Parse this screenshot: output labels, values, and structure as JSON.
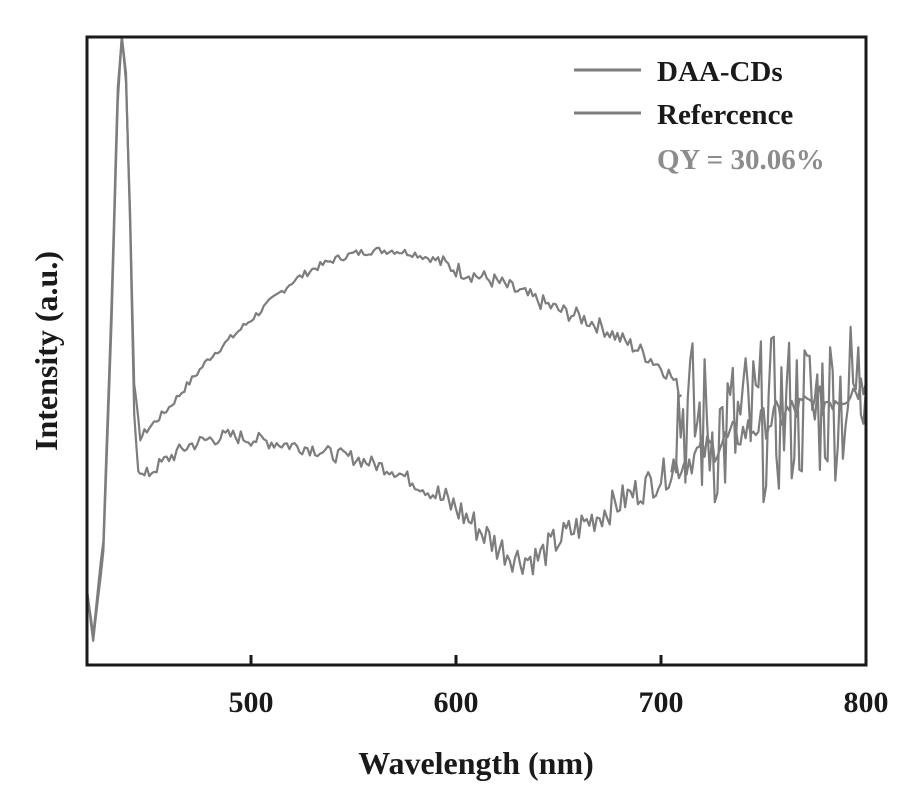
{
  "chart_data": {
    "type": "line",
    "title": "",
    "xlabel": "Wavelength (nm)",
    "ylabel": "Intensity (a.u.)",
    "xlim": [
      420,
      800
    ],
    "ylim": [
      0,
      100
    ],
    "xticks": [
      500,
      600,
      700,
      800
    ],
    "xtick_labels": [
      "500",
      "600",
      "700",
      "800"
    ],
    "grid": false,
    "legend_position": "top-right",
    "colors": {
      "line": "#7d7d7d",
      "axis": "#1a1a1a",
      "annotation": "#8c8c8c"
    },
    "series": [
      {
        "name": "DAA-CDs",
        "noise": 0.6,
        "points": [
          [
            420,
            12
          ],
          [
            423,
            4
          ],
          [
            428,
            18
          ],
          [
            432,
            55
          ],
          [
            435,
            90
          ],
          [
            437,
            100
          ],
          [
            439,
            93
          ],
          [
            441,
            72
          ],
          [
            443,
            45
          ],
          [
            446,
            36
          ],
          [
            448,
            37
          ],
          [
            460,
            41
          ],
          [
            470,
            45
          ],
          [
            480,
            49
          ],
          [
            490,
            52
          ],
          [
            500,
            55
          ],
          [
            510,
            58
          ],
          [
            520,
            61
          ],
          [
            530,
            63
          ],
          [
            540,
            64.5
          ],
          [
            550,
            65.5
          ],
          [
            560,
            66
          ],
          [
            570,
            66
          ],
          [
            580,
            65.5
          ],
          [
            590,
            64.5
          ],
          [
            600,
            63
          ],
          [
            610,
            62
          ],
          [
            620,
            61
          ],
          [
            630,
            59.5
          ],
          [
            640,
            58
          ],
          [
            650,
            56.5
          ],
          [
            660,
            55.5
          ],
          [
            670,
            54
          ],
          [
            680,
            52
          ],
          [
            690,
            50
          ],
          [
            700,
            47.5
          ],
          [
            705,
            46
          ],
          [
            710,
            43
          ]
        ]
      },
      {
        "name": "Refercence",
        "noise": 1.2,
        "points": [
          [
            420,
            12
          ],
          [
            423,
            5
          ],
          [
            428,
            20
          ],
          [
            432,
            58
          ],
          [
            435,
            92
          ],
          [
            437,
            100
          ],
          [
            439,
            94
          ],
          [
            441,
            70
          ],
          [
            443,
            40
          ],
          [
            445,
            31
          ],
          [
            448,
            30
          ],
          [
            460,
            33
          ],
          [
            470,
            35
          ],
          [
            480,
            36
          ],
          [
            490,
            36.5
          ],
          [
            500,
            36
          ],
          [
            510,
            35.5
          ],
          [
            520,
            35
          ],
          [
            530,
            34.5
          ],
          [
            540,
            33.5
          ],
          [
            550,
            33
          ],
          [
            560,
            32
          ],
          [
            570,
            31
          ],
          [
            580,
            29
          ],
          [
            590,
            27
          ],
          [
            600,
            25
          ],
          [
            610,
            22
          ],
          [
            620,
            19
          ],
          [
            630,
            17
          ],
          [
            640,
            17
          ],
          [
            650,
            20
          ],
          [
            660,
            22
          ],
          [
            670,
            24
          ],
          [
            680,
            26
          ],
          [
            690,
            28
          ],
          [
            700,
            30
          ],
          [
            710,
            32
          ],
          [
            720,
            34
          ],
          [
            730,
            35.5
          ],
          [
            740,
            37
          ],
          [
            750,
            38.5
          ],
          [
            760,
            40
          ],
          [
            770,
            41
          ],
          [
            780,
            42
          ],
          [
            790,
            43.5
          ],
          [
            800,
            45
          ]
        ]
      },
      {
        "name": "",
        "noise": 6,
        "points": [
          [
            705,
            42
          ],
          [
            720,
            38
          ],
          [
            730,
            37
          ],
          [
            740,
            38
          ],
          [
            750,
            39
          ],
          [
            760,
            40
          ],
          [
            770,
            41
          ],
          [
            780,
            42
          ],
          [
            790,
            43
          ],
          [
            800,
            44
          ]
        ]
      }
    ],
    "legend": [
      "DAA-CDs",
      "Refercence"
    ],
    "annotation": "QY = 30.06%"
  }
}
